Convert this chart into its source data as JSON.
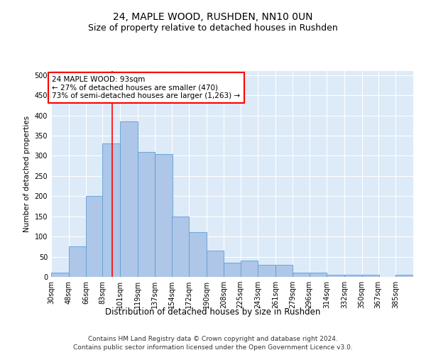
{
  "title": "24, MAPLE WOOD, RUSHDEN, NN10 0UN",
  "subtitle": "Size of property relative to detached houses in Rushden",
  "xlabel": "Distribution of detached houses by size in Rushden",
  "ylabel": "Number of detached properties",
  "bins": [
    30,
    48,
    66,
    83,
    101,
    119,
    137,
    154,
    172,
    190,
    208,
    225,
    243,
    261,
    279,
    296,
    314,
    332,
    350,
    367,
    385
  ],
  "bin_labels": [
    "30sqm",
    "48sqm",
    "66sqm",
    "83sqm",
    "101sqm",
    "119sqm",
    "137sqm",
    "154sqm",
    "172sqm",
    "190sqm",
    "208sqm",
    "225sqm",
    "243sqm",
    "261sqm",
    "279sqm",
    "296sqm",
    "314sqm",
    "332sqm",
    "350sqm",
    "367sqm",
    "385sqm"
  ],
  "values": [
    10,
    75,
    200,
    330,
    385,
    310,
    305,
    150,
    110,
    65,
    35,
    40,
    30,
    30,
    10,
    10,
    5,
    5,
    5,
    0,
    5
  ],
  "bar_color": "#aec6e8",
  "bar_edge_color": "#5a9fd4",
  "background_color": "#ddeaf8",
  "red_line_x": 93,
  "annotation_line1": "24 MAPLE WOOD: 93sqm",
  "annotation_line2": "← 27% of detached houses are smaller (470)",
  "annotation_line3": "73% of semi-detached houses are larger (1,263) →",
  "annotation_box_color": "white",
  "annotation_box_edge": "red",
  "ylim": [
    0,
    510
  ],
  "yticks": [
    0,
    50,
    100,
    150,
    200,
    250,
    300,
    350,
    400,
    450,
    500
  ],
  "footer_line1": "Contains HM Land Registry data © Crown copyright and database right 2024.",
  "footer_line2": "Contains public sector information licensed under the Open Government Licence v3.0.",
  "title_fontsize": 10,
  "subtitle_fontsize": 9,
  "xlabel_fontsize": 8.5,
  "ylabel_fontsize": 7.5,
  "tick_fontsize": 7,
  "annotation_fontsize": 7.5,
  "footer_fontsize": 6.5
}
